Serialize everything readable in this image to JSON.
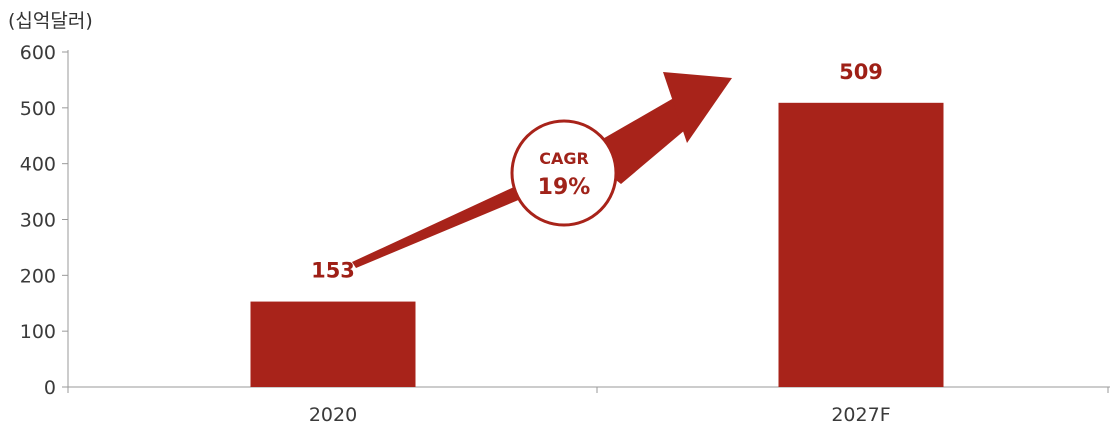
{
  "chart_data": {
    "type": "bar",
    "unit_label": "(십억달러)",
    "categories": [
      "2020",
      "2027F"
    ],
    "values": [
      153,
      509
    ],
    "data_labels": [
      "153",
      "509"
    ],
    "ylim": [
      0,
      600
    ],
    "yticks": [
      0,
      100,
      200,
      300,
      400,
      500,
      600
    ],
    "ytick_labels": [
      "0",
      "100",
      "200",
      "300",
      "400",
      "500",
      "600"
    ],
    "grid": false,
    "legend": "none",
    "bar_color": "#a8231a",
    "annotation": {
      "label": "CAGR",
      "value": "19%",
      "arrow_color": "#a8231a"
    }
  }
}
